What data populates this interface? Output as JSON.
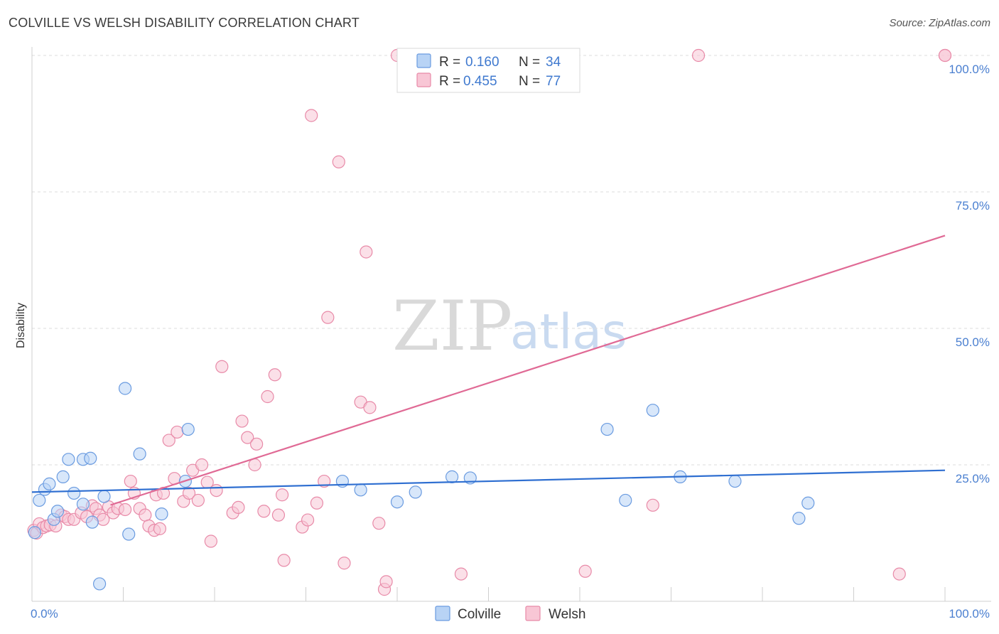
{
  "header": {
    "title": "COLVILLE VS WELSH DISABILITY CORRELATION CHART",
    "source": "Source: ZipAtlas.com"
  },
  "watermark": {
    "zip": "ZIP",
    "atlas": "atlas"
  },
  "colors": {
    "colville_fill": "#b8d3f5",
    "colville_stroke": "#6a9be0",
    "colville_line": "#2f6fd1",
    "welsh_fill": "#f8c6d5",
    "welsh_stroke": "#e88aa8",
    "welsh_line": "#e06a95"
  },
  "legend": {
    "rows": [
      {
        "r_label": "R =",
        "r_value": "0.160",
        "n_label": "N =",
        "n_value": "34"
      },
      {
        "r_label": "R =",
        "r_value": "0.455",
        "n_label": "N =",
        "n_value": "77"
      }
    ]
  },
  "bottom_legend": {
    "colville": "Colville",
    "welsh": "Welsh"
  },
  "chart_data": {
    "type": "scatter",
    "title": "COLVILLE VS WELSH DISABILITY CORRELATION CHART",
    "xlabel": "",
    "ylabel": "Disability",
    "xlim": [
      0,
      100
    ],
    "ylim": [
      0,
      100
    ],
    "x_tick_labels": [
      {
        "value": 0,
        "label": "0.0%"
      },
      {
        "value": 100,
        "label": "100.0%"
      }
    ],
    "y_tick_labels": [
      {
        "value": 25,
        "label": "25.0%"
      },
      {
        "value": 50,
        "label": "50.0%"
      },
      {
        "value": 75,
        "label": "75.0%"
      },
      {
        "value": 100,
        "label": "100.0%"
      }
    ],
    "grid": true,
    "legend_position": "top-center",
    "series": [
      {
        "name": "Colville",
        "r": 0.16,
        "n": 34,
        "trend": {
          "x": [
            0,
            100
          ],
          "y": [
            20.0,
            24.0
          ]
        },
        "points": [
          [
            0.3,
            12.6
          ],
          [
            0.8,
            18.5
          ],
          [
            1.4,
            20.5
          ],
          [
            1.9,
            21.5
          ],
          [
            2.4,
            15.0
          ],
          [
            2.8,
            16.5
          ],
          [
            3.4,
            22.8
          ],
          [
            4.0,
            26.0
          ],
          [
            4.6,
            19.8
          ],
          [
            5.6,
            26.0
          ],
          [
            6.4,
            26.2
          ],
          [
            5.6,
            17.8
          ],
          [
            6.6,
            14.5
          ],
          [
            7.4,
            3.2
          ],
          [
            7.9,
            19.2
          ],
          [
            10.2,
            39.0
          ],
          [
            10.6,
            12.3
          ],
          [
            11.8,
            27.0
          ],
          [
            14.2,
            16.0
          ],
          [
            16.8,
            22.0
          ],
          [
            17.1,
            31.5
          ],
          [
            34.0,
            22.0
          ],
          [
            36.0,
            20.4
          ],
          [
            40.0,
            18.2
          ],
          [
            42.0,
            20.0
          ],
          [
            46.0,
            22.8
          ],
          [
            48.0,
            22.6
          ],
          [
            63.0,
            31.5
          ],
          [
            65.0,
            18.5
          ],
          [
            68.0,
            35.0
          ],
          [
            71.0,
            22.8
          ],
          [
            77.0,
            22.0
          ],
          [
            84.0,
            15.2
          ],
          [
            85.0,
            18.0
          ]
        ]
      },
      {
        "name": "Welsh",
        "r": 0.455,
        "n": 77,
        "trend": {
          "x": [
            0,
            100
          ],
          "y": [
            13.0,
            67.0
          ]
        },
        "points": [
          [
            0.2,
            13.0
          ],
          [
            0.5,
            12.5
          ],
          [
            0.8,
            14.2
          ],
          [
            1.2,
            13.5
          ],
          [
            1.6,
            13.8
          ],
          [
            2.0,
            14.0
          ],
          [
            2.6,
            13.8
          ],
          [
            3.2,
            15.8
          ],
          [
            3.6,
            15.5
          ],
          [
            4.0,
            15.0
          ],
          [
            4.6,
            15.0
          ],
          [
            5.4,
            16.2
          ],
          [
            6.0,
            15.5
          ],
          [
            6.6,
            17.5
          ],
          [
            7.0,
            17.0
          ],
          [
            7.4,
            15.8
          ],
          [
            7.8,
            15.0
          ],
          [
            8.4,
            17.3
          ],
          [
            8.9,
            16.2
          ],
          [
            9.4,
            17.0
          ],
          [
            10.2,
            16.8
          ],
          [
            11.2,
            19.8
          ],
          [
            10.8,
            22.0
          ],
          [
            11.8,
            17.0
          ],
          [
            12.4,
            15.8
          ],
          [
            12.8,
            13.8
          ],
          [
            13.4,
            13.0
          ],
          [
            13.6,
            19.5
          ],
          [
            14.0,
            13.3
          ],
          [
            14.4,
            19.8
          ],
          [
            15.0,
            29.5
          ],
          [
            15.6,
            22.5
          ],
          [
            15.9,
            31.0
          ],
          [
            16.6,
            18.3
          ],
          [
            17.2,
            19.8
          ],
          [
            17.6,
            24.0
          ],
          [
            18.2,
            18.5
          ],
          [
            18.6,
            25.0
          ],
          [
            19.2,
            21.8
          ],
          [
            19.6,
            11.0
          ],
          [
            20.2,
            20.3
          ],
          [
            20.8,
            43.0
          ],
          [
            22.0,
            16.2
          ],
          [
            22.6,
            17.2
          ],
          [
            23.0,
            33.0
          ],
          [
            23.6,
            30.0
          ],
          [
            24.4,
            25.0
          ],
          [
            24.6,
            28.8
          ],
          [
            25.4,
            16.5
          ],
          [
            25.8,
            37.5
          ],
          [
            26.6,
            41.5
          ],
          [
            27.0,
            15.8
          ],
          [
            27.6,
            7.5
          ],
          [
            27.4,
            19.5
          ],
          [
            29.6,
            13.6
          ],
          [
            30.2,
            14.9
          ],
          [
            30.6,
            89.0
          ],
          [
            31.2,
            18.0
          ],
          [
            32.0,
            22.0
          ],
          [
            32.4,
            52.0
          ],
          [
            33.6,
            80.5
          ],
          [
            34.2,
            7.0
          ],
          [
            36.0,
            36.5
          ],
          [
            36.6,
            64.0
          ],
          [
            37.0,
            35.5
          ],
          [
            38.0,
            14.3
          ],
          [
            38.6,
            2.2
          ],
          [
            38.8,
            3.6
          ],
          [
            40.0,
            100.0
          ],
          [
            47.0,
            5.0
          ],
          [
            54.0,
            100.0
          ],
          [
            60.6,
            5.5
          ],
          [
            68.0,
            17.6
          ],
          [
            73.0,
            100.0
          ],
          [
            95.0,
            5.0
          ],
          [
            100.0,
            100.0
          ],
          [
            100.0,
            100.0
          ]
        ]
      }
    ]
  }
}
